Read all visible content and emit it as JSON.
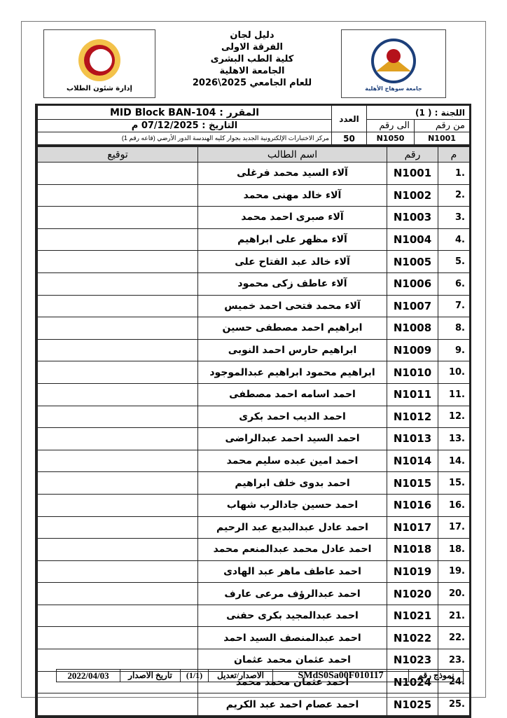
{
  "header": {
    "lines": [
      "دليل لجان",
      "الفرقة الاولى",
      "كلية الطب البشرى",
      "الجامعة الاهلية",
      "للعام الجامعي 2025\\2026"
    ]
  },
  "logos": {
    "left_text": "إدارة شئون الطلاب",
    "right_text": "جامعة سوهاج الأهلية"
  },
  "info": {
    "committee": "اللجنة : ( 1)",
    "from_label": "من رقم",
    "to_label": "الى رقم",
    "from": "N1001",
    "to": "N1050",
    "count_label": "العدد",
    "count": "50",
    "course": "المقرر : MID Block BAN-104",
    "date": "التاريخ : 07/12/2025 م",
    "location": "مركز الاختبارات الإلكترونية الجديد بجوار كليه الهندسة الدور الأرضي (قاعه رقم 1)"
  },
  "columns": {
    "num": "م",
    "id": "رقم",
    "name": "اسم الطالب",
    "signature": "توقيع"
  },
  "rows": [
    {
      "n": "1.",
      "id": "N1001",
      "name": "آلاء السيد محمد فرغلى"
    },
    {
      "n": "2.",
      "id": "N1002",
      "name": "آلاء خالد مهنى محمد"
    },
    {
      "n": "3.",
      "id": "N1003",
      "name": "آلاء صبرى احمد محمد"
    },
    {
      "n": "4.",
      "id": "N1004",
      "name": "آلاء مظهر على ابراهيم"
    },
    {
      "n": "5.",
      "id": "N1005",
      "name": "آلاء خالد عبد الفتاح على"
    },
    {
      "n": "6.",
      "id": "N1006",
      "name": "آلاء عاطف زكى محمود"
    },
    {
      "n": "7.",
      "id": "N1007",
      "name": "آلاء محمد فتحى احمد خميس"
    },
    {
      "n": "8.",
      "id": "N1008",
      "name": "ابراهيم احمد مصطفى حسين"
    },
    {
      "n": "9.",
      "id": "N1009",
      "name": "ابراهيم حارس احمد النوبى"
    },
    {
      "n": "10.",
      "id": "N1010",
      "name": "ابراهيم محمود ابراهيم عبدالموجود"
    },
    {
      "n": "11.",
      "id": "N1011",
      "name": "احمد اسامه احمد مصطفى"
    },
    {
      "n": "12.",
      "id": "N1012",
      "name": "احمد الديب احمد بكرى"
    },
    {
      "n": "13.",
      "id": "N1013",
      "name": "احمد السيد احمد عبدالراضى"
    },
    {
      "n": "14.",
      "id": "N1014",
      "name": "احمد امين عبده سليم محمد"
    },
    {
      "n": "15.",
      "id": "N1015",
      "name": "احمد بدوى خلف ابراهيم"
    },
    {
      "n": "16.",
      "id": "N1016",
      "name": "احمد حسين جادالرب شهاب"
    },
    {
      "n": "17.",
      "id": "N1017",
      "name": "احمد عادل عبدالبديع عبد الرحيم"
    },
    {
      "n": "18.",
      "id": "N1018",
      "name": "احمد عادل محمد عبدالمنعم محمد"
    },
    {
      "n": "19.",
      "id": "N1019",
      "name": "احمد عاطف ماهر عبد الهادى"
    },
    {
      "n": "20.",
      "id": "N1020",
      "name": "احمد عبدالرؤف مرعى عارف"
    },
    {
      "n": "21.",
      "id": "N1021",
      "name": "احمد عبدالمجيد بكرى حفنى"
    },
    {
      "n": "22.",
      "id": "N1022",
      "name": "احمد عبدالمنصف السيد احمد"
    },
    {
      "n": "23.",
      "id": "N1023",
      "name": "احمد عثمان محمد عثمان"
    },
    {
      "n": "24.",
      "id": "N1024",
      "name": "احمد عثمان محمد محمد"
    },
    {
      "n": "25.",
      "id": "N1025",
      "name": "احمد عصام احمد عبد الكريم"
    }
  ],
  "footer": {
    "form_label": "نموذج رقم",
    "form_no": "SMdS0Sa00F010117",
    "edition_label": "الاصدار/تعديل",
    "edition": "(1/1)",
    "date_label": "تاريخ الاصدار",
    "date": "2022/04/03"
  }
}
